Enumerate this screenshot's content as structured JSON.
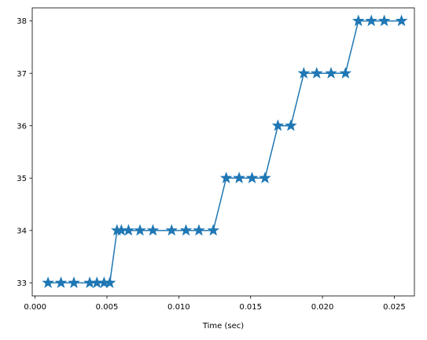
{
  "chart_data": {
    "type": "line",
    "title": "",
    "xlabel": "Time (sec)",
    "ylabel": "",
    "xlim": [
      -0.0002,
      0.0264
    ],
    "ylim": [
      32.75,
      38.25
    ],
    "xticks": [
      0.0,
      0.005,
      0.01,
      0.015,
      0.02,
      0.025
    ],
    "xtick_labels": [
      "0.000",
      "0.005",
      "0.010",
      "0.015",
      "0.020",
      "0.025"
    ],
    "yticks": [
      33,
      34,
      35,
      36,
      37,
      38
    ],
    "ytick_labels": [
      "33",
      "34",
      "35",
      "36",
      "37",
      "38"
    ],
    "grid": false,
    "legend": "none",
    "marker": "star",
    "series": [
      {
        "color": "#1f77b4",
        "x": [
          0.0009,
          0.0018,
          0.0027,
          0.0038,
          0.0043,
          0.0048,
          0.0052,
          0.0057,
          0.006,
          0.0065,
          0.0073,
          0.0082,
          0.0095,
          0.0105,
          0.0114,
          0.0124,
          0.0133,
          0.0142,
          0.0151,
          0.016,
          0.0169,
          0.0178,
          0.0187,
          0.0196,
          0.0206,
          0.0216,
          0.0225,
          0.0234,
          0.0243,
          0.0255
        ],
        "y": [
          33,
          33,
          33,
          33,
          33,
          33,
          33,
          34,
          34,
          34,
          34,
          34,
          34,
          34,
          34,
          34,
          35,
          35,
          35,
          35,
          36,
          36,
          37,
          37,
          37,
          37,
          38,
          38,
          38,
          38
        ]
      }
    ]
  }
}
